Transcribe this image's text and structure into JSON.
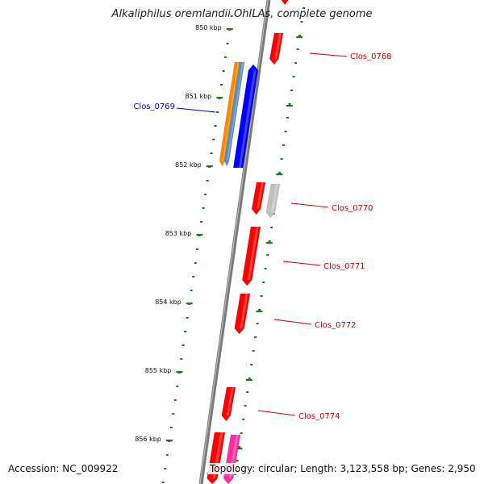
{
  "title": "Alkaliphilus oremlandii OhILAs, complete genome",
  "footer": {
    "accession": "Accession: NC_009922",
    "summary": "Topology: circular; Length: 3,123,558 bp; Genes: 2,950"
  },
  "ticks": [
    "850 kbp",
    "851 kbp",
    "852 kbp",
    "853 kbp",
    "854 kbp",
    "855 kbp",
    "856 kbp"
  ],
  "gene_labels": [
    {
      "text": "Clos_0768",
      "color": "#cc0000"
    },
    {
      "text": "Clos_0769",
      "color": "#0000cc"
    },
    {
      "text": "Clos_0770",
      "color": "#cc0000"
    },
    {
      "text": "Clos_0771",
      "color": "#cc0000"
    },
    {
      "text": "Clos_0772",
      "color": "#cc0000"
    },
    {
      "text": "Clos_0774",
      "color": "#cc0000"
    }
  ],
  "colors": {
    "backbone": "#7a7a7a",
    "ticks": "#1e7a1e",
    "gene_forward": "#0000ff",
    "gene_reverse": "#ff0000",
    "gene_orange": "#ff8800",
    "gene_steel": "#5b8fbf",
    "gene_grey": "#c0c0c0",
    "gene_magenta": "#ff2fa0"
  }
}
